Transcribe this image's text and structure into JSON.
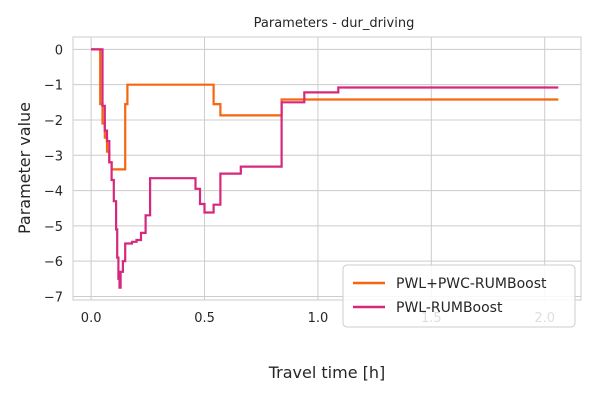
{
  "chart_data": {
    "type": "line",
    "title": "Parameters - dur_driving",
    "xlabel": "Travel time [h]",
    "ylabel": "Parameter value",
    "xlim": [
      -0.08,
      2.16
    ],
    "ylim": [
      -7.1,
      0.35
    ],
    "xticks": [
      0.0,
      0.5,
      1.0,
      1.5,
      2.0
    ],
    "xtick_labels": [
      "0.0",
      "0.5",
      "1.0",
      "1.5",
      "2.0"
    ],
    "yticks": [
      0,
      -1,
      -2,
      -3,
      -4,
      -5,
      -6,
      -7
    ],
    "ytick_labels": [
      "0",
      "−1",
      "−2",
      "−3",
      "−4",
      "−5",
      "−6",
      "−7"
    ],
    "grid": true,
    "legend_position": "lower-right",
    "series": [
      {
        "name": "PWL+PWC-RUMBoost",
        "color": "#f5670f",
        "step": true,
        "points": [
          [
            0.0,
            0.0
          ],
          [
            0.04,
            0.0
          ],
          [
            0.04,
            -1.55
          ],
          [
            0.05,
            -1.55
          ],
          [
            0.05,
            -2.1
          ],
          [
            0.06,
            -2.1
          ],
          [
            0.06,
            -2.5
          ],
          [
            0.07,
            -2.5
          ],
          [
            0.07,
            -2.9
          ],
          [
            0.08,
            -2.9
          ],
          [
            0.08,
            -3.2
          ],
          [
            0.09,
            -3.2
          ],
          [
            0.09,
            -3.4
          ],
          [
            0.15,
            -3.4
          ],
          [
            0.15,
            -1.55
          ],
          [
            0.16,
            -1.55
          ],
          [
            0.16,
            -1.0
          ],
          [
            0.54,
            -1.0
          ],
          [
            0.54,
            -1.55
          ],
          [
            0.57,
            -1.55
          ],
          [
            0.57,
            -1.87
          ],
          [
            0.84,
            -1.87
          ],
          [
            0.84,
            -1.42
          ],
          [
            2.06,
            -1.42
          ]
        ]
      },
      {
        "name": "PWL-RUMBoost",
        "color": "#d6287e",
        "step": true,
        "points": [
          [
            0.0,
            0.0
          ],
          [
            0.05,
            0.0
          ],
          [
            0.05,
            -1.6
          ],
          [
            0.06,
            -1.6
          ],
          [
            0.06,
            -2.3
          ],
          [
            0.07,
            -2.3
          ],
          [
            0.07,
            -2.6
          ],
          [
            0.08,
            -2.6
          ],
          [
            0.08,
            -3.2
          ],
          [
            0.09,
            -3.2
          ],
          [
            0.09,
            -3.7
          ],
          [
            0.1,
            -3.7
          ],
          [
            0.1,
            -4.3
          ],
          [
            0.11,
            -4.3
          ],
          [
            0.11,
            -5.1
          ],
          [
            0.115,
            -5.1
          ],
          [
            0.115,
            -5.9
          ],
          [
            0.12,
            -5.9
          ],
          [
            0.12,
            -6.5
          ],
          [
            0.125,
            -6.5
          ],
          [
            0.125,
            -6.75
          ],
          [
            0.13,
            -6.75
          ],
          [
            0.13,
            -6.3
          ],
          [
            0.14,
            -6.3
          ],
          [
            0.14,
            -6.0
          ],
          [
            0.15,
            -6.0
          ],
          [
            0.15,
            -5.5
          ],
          [
            0.18,
            -5.5
          ],
          [
            0.18,
            -5.45
          ],
          [
            0.2,
            -5.45
          ],
          [
            0.2,
            -5.4
          ],
          [
            0.22,
            -5.4
          ],
          [
            0.22,
            -5.2
          ],
          [
            0.24,
            -5.2
          ],
          [
            0.24,
            -4.7
          ],
          [
            0.26,
            -4.7
          ],
          [
            0.26,
            -3.65
          ],
          [
            0.46,
            -3.65
          ],
          [
            0.46,
            -3.95
          ],
          [
            0.48,
            -3.95
          ],
          [
            0.48,
            -4.38
          ],
          [
            0.5,
            -4.38
          ],
          [
            0.5,
            -4.62
          ],
          [
            0.54,
            -4.62
          ],
          [
            0.54,
            -4.4
          ],
          [
            0.57,
            -4.4
          ],
          [
            0.57,
            -3.52
          ],
          [
            0.66,
            -3.52
          ],
          [
            0.66,
            -3.32
          ],
          [
            0.84,
            -3.32
          ],
          [
            0.84,
            -1.5
          ],
          [
            0.94,
            -1.5
          ],
          [
            0.94,
            -1.22
          ],
          [
            1.09,
            -1.22
          ],
          [
            1.09,
            -1.08
          ],
          [
            2.06,
            -1.08
          ]
        ]
      }
    ]
  }
}
